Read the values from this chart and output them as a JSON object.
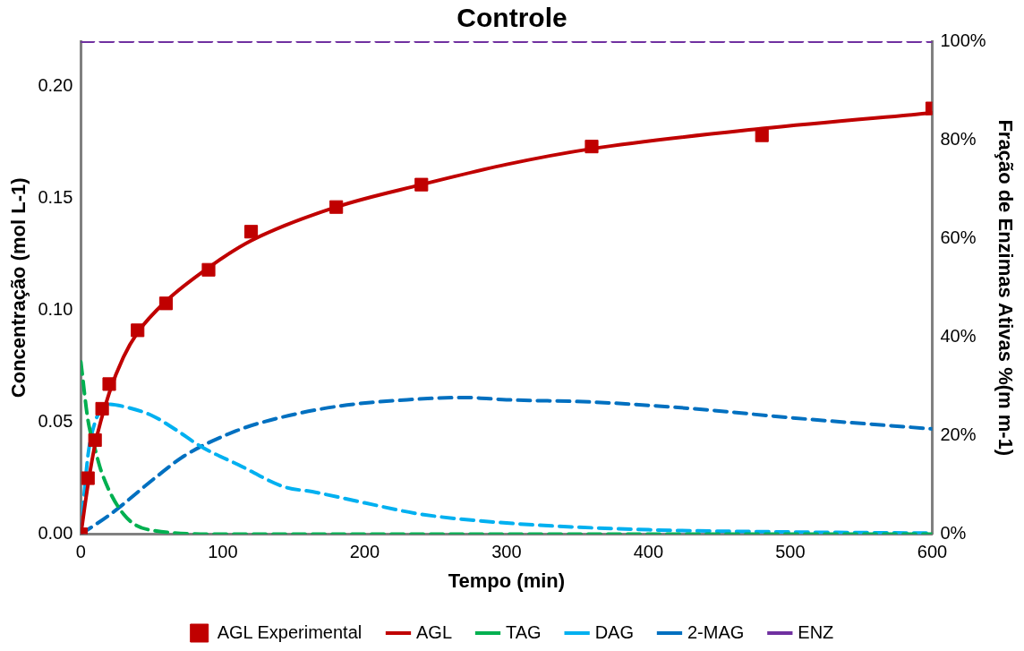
{
  "chart_data": {
    "type": "line",
    "title": "Controle",
    "xlabel": "Tempo (min)",
    "ylabel": "Concentração (mol L-1)",
    "y2label": "Fração de Enzimas Ativas %(m m-1)",
    "xlim": [
      0,
      600
    ],
    "xticks": [
      0,
      100,
      200,
      300,
      400,
      500,
      600
    ],
    "ylim": [
      0,
      0.22
    ],
    "yticks": [
      {
        "value": 0,
        "label": "0.00"
      },
      {
        "value": 0.05,
        "label": "0.05"
      },
      {
        "value": 0.1,
        "label": "0.10"
      },
      {
        "value": 0.15,
        "label": "0.15"
      },
      {
        "value": 0.2,
        "label": "0.20"
      }
    ],
    "y2lim": [
      0,
      100
    ],
    "y2ticks": [
      {
        "value": 0,
        "label": "0%"
      },
      {
        "value": 20,
        "label": "20%"
      },
      {
        "value": 40,
        "label": "40%"
      },
      {
        "value": 60,
        "label": "60%"
      },
      {
        "value": 80,
        "label": "80%"
      },
      {
        "value": 100,
        "label": "100%"
      }
    ],
    "grid": false,
    "legend": "bottom",
    "marker": "none",
    "series": [
      {
        "name": "AGL",
        "color": "#c00000",
        "line_style": "solid",
        "x": [
          0,
          5,
          10,
          20,
          30,
          40,
          60,
          90,
          120,
          180,
          240,
          300,
          360,
          480,
          600
        ],
        "values": [
          0,
          0.022,
          0.04,
          0.063,
          0.079,
          0.09,
          0.104,
          0.119,
          0.131,
          0.146,
          0.156,
          0.165,
          0.172,
          0.181,
          0.188
        ]
      },
      {
        "name": "TAG",
        "color": "#00b050",
        "line_style": "dashed",
        "x": [
          0,
          5,
          10,
          15,
          30,
          48,
          100,
          200,
          300,
          400,
          500,
          600
        ],
        "values": [
          0.077,
          0.051,
          0.038,
          0.027,
          0.009,
          0.002,
          0,
          0,
          0,
          0,
          0,
          0
        ]
      },
      {
        "name": "DAG",
        "color": "#00b0f0",
        "line_style": "dashed",
        "x": [
          0,
          5,
          10,
          15,
          20,
          30,
          50,
          66,
          85,
          111,
          144,
          163,
          200,
          239,
          300,
          400,
          500,
          600
        ],
        "values": [
          0,
          0.035,
          0.05,
          0.056,
          0.058,
          0.057,
          0.053,
          0.047,
          0.039,
          0.031,
          0.021,
          0.019,
          0.014,
          0.009,
          0.005,
          0.002,
          0.001,
          0.0005
        ]
      },
      {
        "name": "2-MAG",
        "color": "#0070c0",
        "line_style": "dashed",
        "x": [
          0,
          21,
          54,
          73,
          109,
          134,
          180,
          230,
          271,
          300,
          360,
          432,
          500,
          600
        ],
        "values": [
          0,
          0.009,
          0.026,
          0.035,
          0.046,
          0.051,
          0.057,
          0.06,
          0.061,
          0.06,
          0.059,
          0.056,
          0.052,
          0.047
        ]
      },
      {
        "name": "AGL Experimental",
        "type": "scatter",
        "marker": "square",
        "color": "#c00000",
        "x": [
          0,
          5,
          10,
          15,
          20,
          40,
          60,
          90,
          120,
          180,
          240,
          360,
          480,
          600
        ],
        "values": [
          0,
          0.025,
          0.042,
          0.056,
          0.067,
          0.091,
          0.103,
          0.118,
          0.135,
          0.146,
          0.156,
          0.173,
          0.178,
          0.19
        ]
      },
      {
        "name": "ENZ",
        "color": "#7030a0",
        "line_style": "dashed",
        "axis": "y2",
        "x": [
          0,
          600
        ],
        "values": [
          100,
          100
        ]
      }
    ]
  }
}
